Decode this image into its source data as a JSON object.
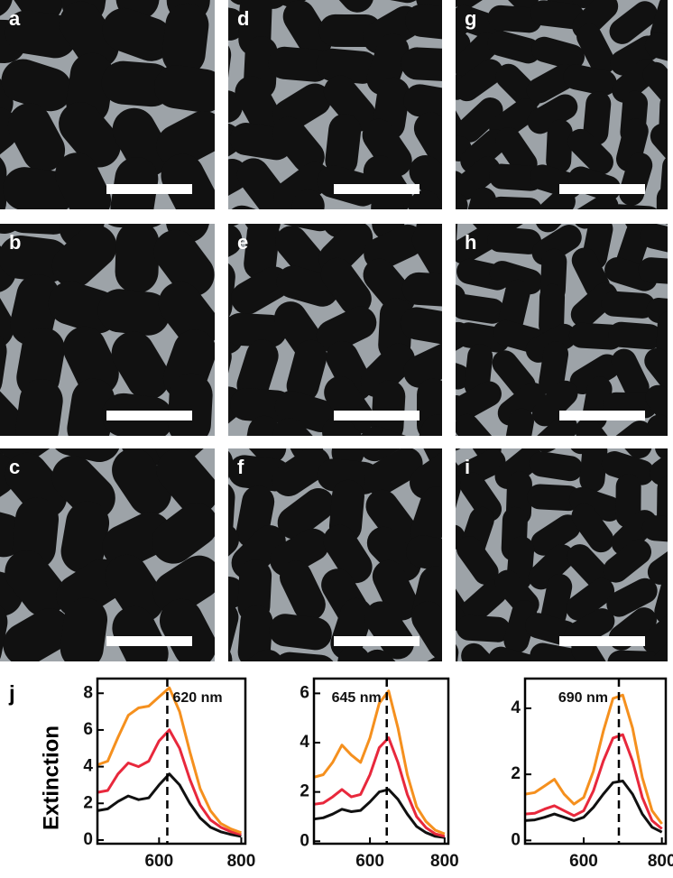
{
  "panels": {
    "labels": [
      "a",
      "b",
      "c",
      "d",
      "e",
      "f",
      "g",
      "h",
      "i"
    ]
  },
  "panel_j_label": "j",
  "chart_data": [
    {
      "type": "line",
      "ylabel": "Extinction",
      "annotation": "620 nm",
      "dashed_line_x": 620,
      "x": [
        450,
        475,
        500,
        525,
        550,
        575,
        600,
        625,
        650,
        675,
        700,
        725,
        750,
        775,
        800
      ],
      "xlim": [
        450,
        810
      ],
      "xticks": [
        600,
        800
      ],
      "ylim": [
        -0.2,
        8.8
      ],
      "yticks": [
        0,
        2,
        4,
        6,
        8
      ],
      "series": [
        {
          "name": "black",
          "color": "#111111",
          "values": [
            1.6,
            1.7,
            2.1,
            2.4,
            2.2,
            2.3,
            3.0,
            3.6,
            3.0,
            2.0,
            1.2,
            0.7,
            0.45,
            0.3,
            0.2
          ]
        },
        {
          "name": "red",
          "color": "#e8283c",
          "values": [
            2.6,
            2.7,
            3.6,
            4.2,
            4.0,
            4.3,
            5.4,
            6.0,
            5.0,
            3.3,
            1.9,
            1.1,
            0.7,
            0.45,
            0.3
          ]
        },
        {
          "name": "orange",
          "color": "#f5901e",
          "values": [
            4.1,
            4.3,
            5.6,
            6.8,
            7.2,
            7.3,
            7.8,
            8.3,
            7.0,
            4.8,
            2.8,
            1.6,
            0.9,
            0.6,
            0.4
          ]
        }
      ]
    },
    {
      "type": "line",
      "annotation": "645 nm",
      "dashed_line_x": 645,
      "x": [
        450,
        475,
        500,
        525,
        550,
        575,
        600,
        625,
        650,
        675,
        700,
        725,
        750,
        775,
        800
      ],
      "xlim": [
        450,
        810
      ],
      "xticks": [
        600,
        800
      ],
      "ylim": [
        -0.1,
        6.6
      ],
      "yticks": [
        0,
        2,
        4,
        6
      ],
      "series": [
        {
          "name": "black",
          "color": "#111111",
          "values": [
            0.9,
            0.95,
            1.1,
            1.3,
            1.2,
            1.25,
            1.6,
            2.0,
            2.1,
            1.7,
            1.1,
            0.6,
            0.35,
            0.2,
            0.15
          ]
        },
        {
          "name": "red",
          "color": "#e8283c",
          "values": [
            1.5,
            1.55,
            1.8,
            2.1,
            1.8,
            1.9,
            2.7,
            3.8,
            4.2,
            3.2,
            1.9,
            1.0,
            0.55,
            0.3,
            0.2
          ]
        },
        {
          "name": "orange",
          "color": "#f5901e",
          "values": [
            2.6,
            2.7,
            3.2,
            3.9,
            3.5,
            3.2,
            4.2,
            5.6,
            6.1,
            4.6,
            2.7,
            1.4,
            0.8,
            0.45,
            0.3
          ]
        }
      ]
    },
    {
      "type": "line",
      "annotation": "690 nm",
      "dashed_line_x": 690,
      "x": [
        450,
        475,
        500,
        525,
        550,
        575,
        600,
        625,
        650,
        675,
        700,
        725,
        750,
        775,
        800
      ],
      "xlim": [
        450,
        810
      ],
      "xticks": [
        600,
        800
      ],
      "ylim": [
        -0.1,
        4.9
      ],
      "yticks": [
        0,
        2,
        4
      ],
      "series": [
        {
          "name": "black",
          "color": "#111111",
          "values": [
            0.6,
            0.62,
            0.7,
            0.8,
            0.7,
            0.6,
            0.7,
            1.0,
            1.4,
            1.75,
            1.8,
            1.4,
            0.8,
            0.4,
            0.25
          ]
        },
        {
          "name": "red",
          "color": "#e8283c",
          "values": [
            0.8,
            0.82,
            0.95,
            1.05,
            0.9,
            0.75,
            0.9,
            1.5,
            2.4,
            3.1,
            3.2,
            2.4,
            1.3,
            0.6,
            0.35
          ]
        },
        {
          "name": "orange",
          "color": "#f5901e",
          "values": [
            1.4,
            1.45,
            1.65,
            1.85,
            1.4,
            1.1,
            1.3,
            2.1,
            3.3,
            4.3,
            4.4,
            3.4,
            1.9,
            0.9,
            0.5
          ]
        }
      ]
    }
  ]
}
